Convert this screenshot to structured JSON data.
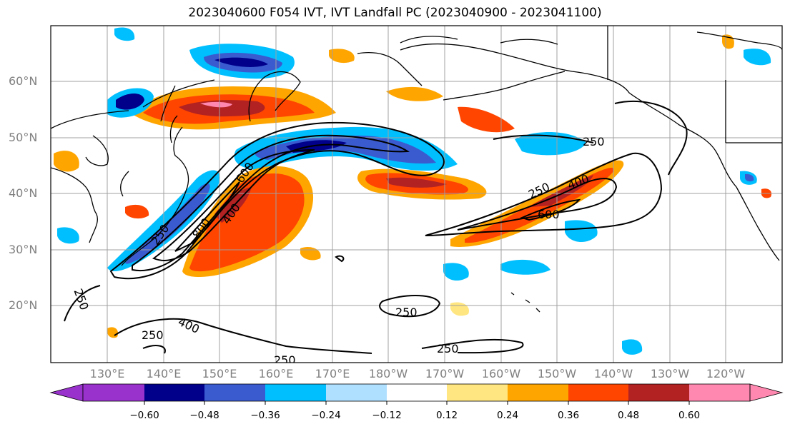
{
  "title": "2023040600 F054 IVT, IVT Landfall PC (2023040900 - 2023041100)",
  "lat_labels": [
    "60°N",
    "50°N",
    "40°N",
    "30°N",
    "20°N"
  ],
  "lon_labels": [
    "130°E",
    "140°E",
    "150°E",
    "160°E",
    "170°E",
    "180°W",
    "170°W",
    "160°W",
    "150°W",
    "140°W",
    "130°W",
    "120°W"
  ],
  "contour_labels": [
    "250",
    "400",
    "600",
    "800",
    "250",
    "400",
    "600",
    "250",
    "250",
    "400",
    "250",
    "250",
    "250",
    "250"
  ],
  "colorbar": {
    "ticks": [
      "−0.60",
      "−0.48",
      "−0.36",
      "−0.24",
      "−0.12",
      "0.12",
      "0.24",
      "0.36",
      "0.48",
      "0.60"
    ],
    "colors": [
      "#9932cc",
      "#00008b",
      "#3a5bd0",
      "#00bfff",
      "#b0e0ff",
      "#ffffff",
      "#ffe680",
      "#ffa500",
      "#ff4500",
      "#b22222",
      "#ff88b0"
    ]
  },
  "colors": {
    "land_outline": "#000000",
    "grid": "#a0a0a0",
    "contour": "#000000"
  }
}
